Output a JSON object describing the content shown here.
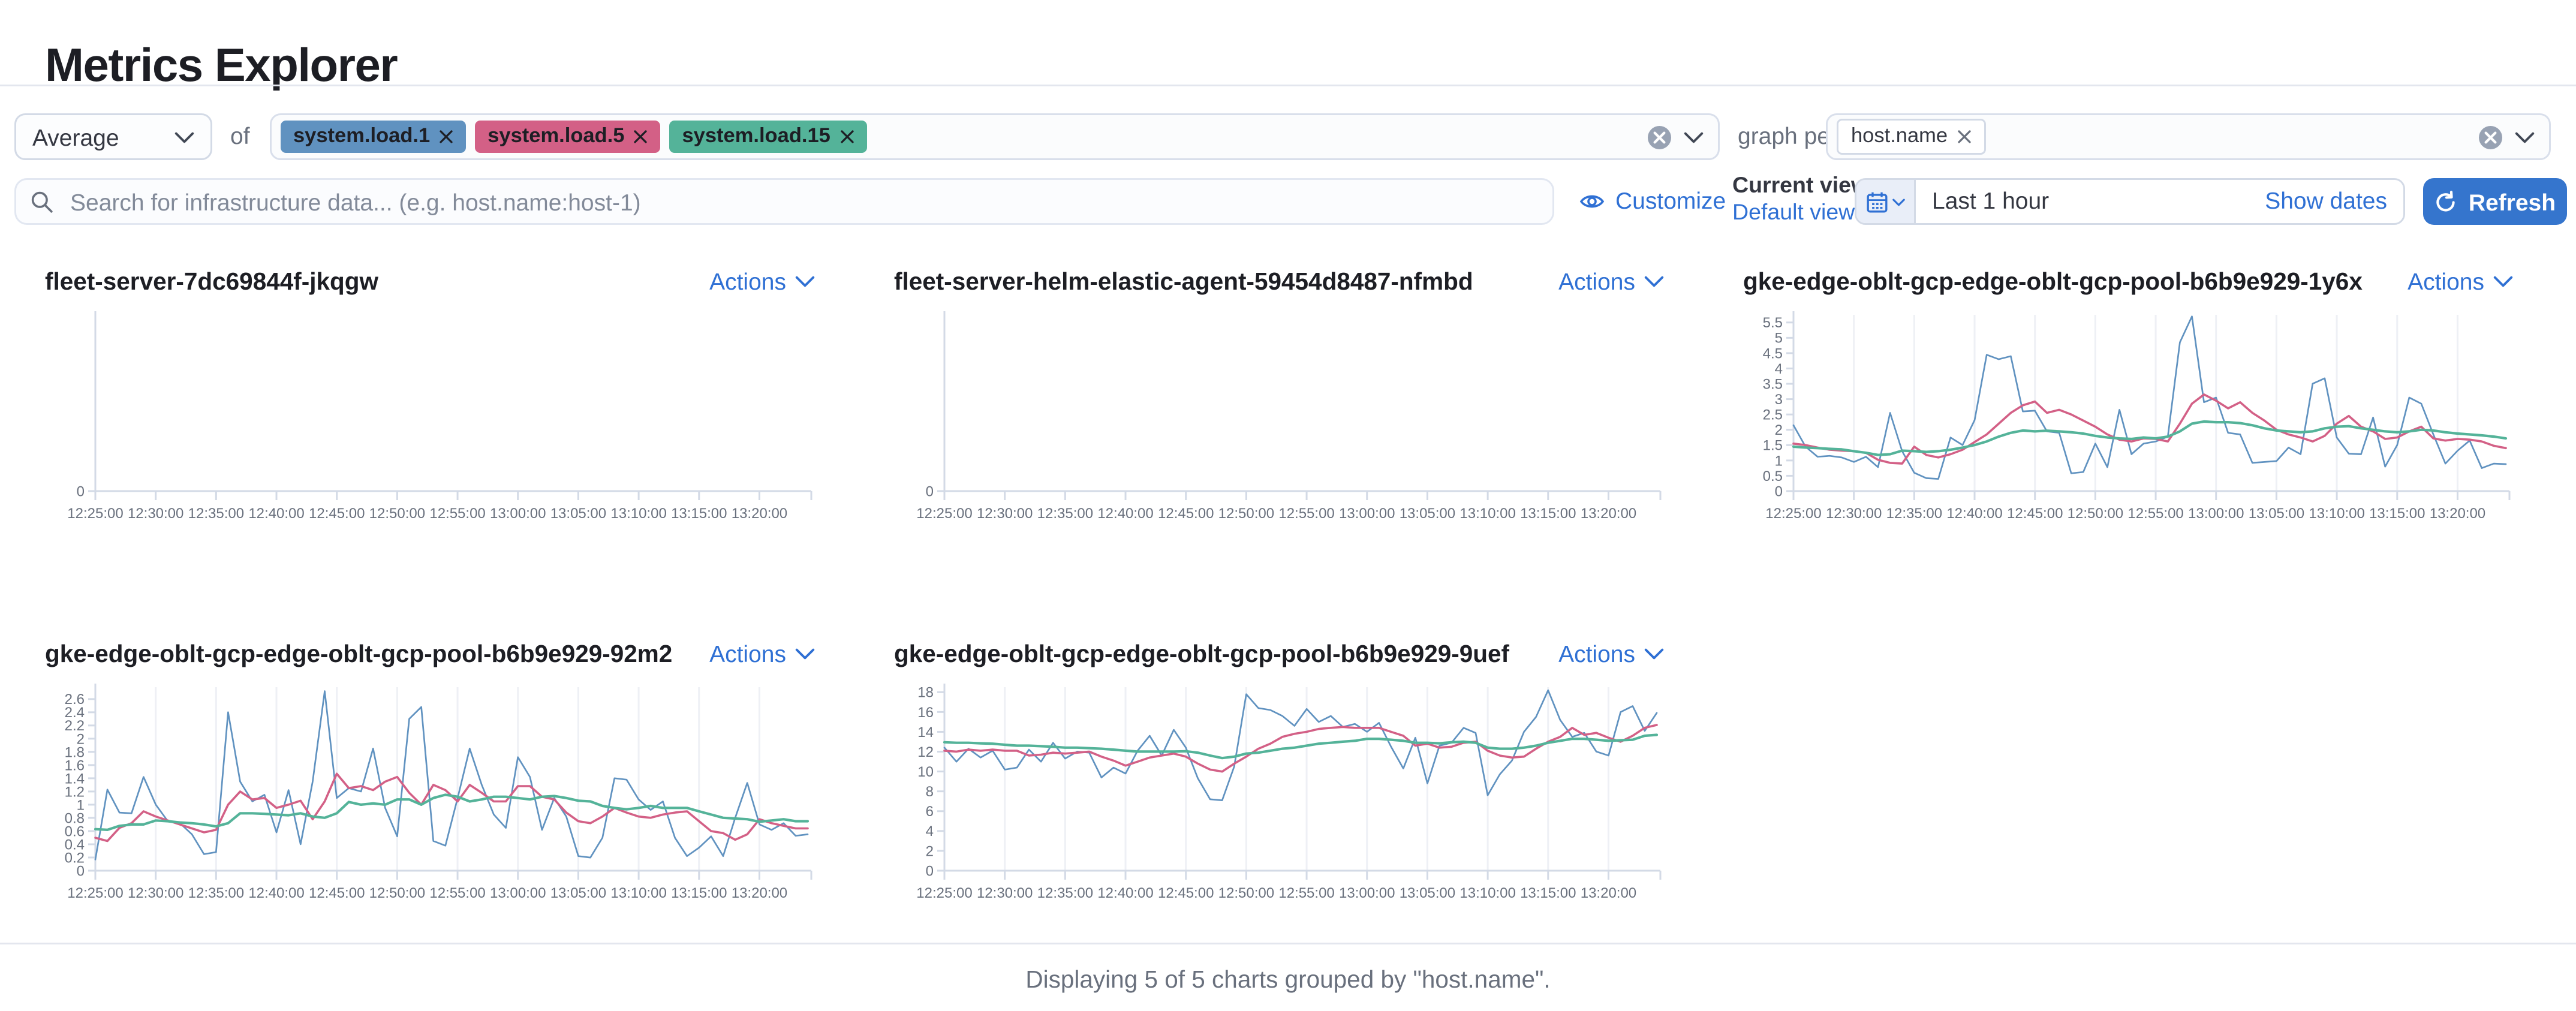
{
  "page": {
    "title": "Metrics Explorer"
  },
  "toolbar": {
    "aggregation": {
      "value": "Average",
      "of_label": "of"
    },
    "metrics_field_tags": [
      {
        "label": "system.load.1",
        "color": "#6092C0"
      },
      {
        "label": "system.load.5",
        "color": "#D36086"
      },
      {
        "label": "system.load.15",
        "color": "#54B399"
      }
    ],
    "graph_per_label": "graph per",
    "group_by_tags": [
      {
        "label": "host.name"
      }
    ],
    "search_placeholder": "Search for infrastructure data... (e.g. host.name:host-1)",
    "customize_label": "Customize",
    "current_view_label": "Current view",
    "default_view_label": "Default view",
    "time_range_value": "Last 1 hour",
    "show_dates_label": "Show dates",
    "refresh_label": "Refresh"
  },
  "charts_common": {
    "actions_label": "Actions"
  },
  "chart_data": [
    {
      "type": "line",
      "title": "fleet-server-7dc69844f-jkqgw",
      "x_ticks": [
        "12:25:00",
        "12:30:00",
        "12:35:00",
        "12:40:00",
        "12:45:00",
        "12:50:00",
        "12:55:00",
        "13:00:00",
        "13:05:00",
        "13:10:00",
        "13:15:00",
        "13:20:00"
      ],
      "y_ticks": [
        "0"
      ],
      "y_max": 1,
      "series": []
    },
    {
      "type": "line",
      "title": "fleet-server-helm-elastic-agent-59454d8487-nfmbd",
      "x_ticks": [
        "12:25:00",
        "12:30:00",
        "12:35:00",
        "12:40:00",
        "12:45:00",
        "12:50:00",
        "12:55:00",
        "13:00:00",
        "13:05:00",
        "13:10:00",
        "13:15:00",
        "13:20:00"
      ],
      "y_ticks": [
        "0"
      ],
      "y_max": 1,
      "series": []
    },
    {
      "type": "line",
      "title": "gke-edge-oblt-gcp-edge-oblt-gcp-pool-b6b9e929-1y6x",
      "x_ticks": [
        "12:25:00",
        "12:30:00",
        "12:35:00",
        "12:40:00",
        "12:45:00",
        "12:50:00",
        "12:55:00",
        "13:00:00",
        "13:05:00",
        "13:10:00",
        "13:15:00",
        "13:20:00"
      ],
      "y_ticks": [
        "0",
        "0.5",
        "1",
        "1.5",
        "2",
        "2.5",
        "3",
        "3.5",
        "4",
        "4.5",
        "5",
        "5.5"
      ],
      "y_max": 5.75,
      "series": [
        {
          "name": "system.load.1",
          "color": "#6092C0",
          "width": 0.9,
          "values": [
            2.15,
            1.45,
            1.12,
            1.15,
            1.1,
            0.95,
            1.12,
            0.78,
            2.55,
            1.3,
            0.6,
            0.42,
            0.4,
            1.75,
            1.5,
            2.32,
            4.45,
            4.3,
            4.4,
            2.6,
            2.62,
            1.95,
            1.9,
            0.58,
            0.62,
            1.55,
            0.78,
            2.65,
            1.2,
            1.55,
            1.62,
            1.78,
            4.85,
            5.7,
            2.9,
            3.05,
            1.9,
            1.85,
            0.92,
            0.95,
            0.98,
            1.42,
            1.2,
            3.5,
            3.68,
            1.75,
            1.22,
            1.2,
            2.4,
            0.8,
            1.5,
            3.05,
            2.85,
            1.85,
            0.9,
            1.32,
            1.65,
            0.75,
            0.9,
            0.88
          ]
        },
        {
          "name": "system.load.5",
          "color": "#D36086",
          "width": 1.2,
          "values": [
            1.55,
            1.5,
            1.42,
            1.35,
            1.32,
            1.3,
            1.25,
            1.02,
            0.92,
            0.9,
            1.45,
            1.18,
            1.1,
            1.2,
            1.35,
            1.6,
            1.85,
            2.2,
            2.55,
            2.8,
            2.92,
            2.55,
            2.65,
            2.5,
            2.3,
            2.1,
            1.85,
            1.68,
            1.62,
            1.72,
            1.7,
            1.62,
            2.2,
            2.85,
            3.15,
            2.95,
            2.7,
            2.9,
            2.55,
            2.3,
            2.0,
            1.85,
            1.75,
            1.62,
            1.8,
            2.2,
            2.45,
            2.1,
            1.95,
            1.7,
            1.75,
            1.95,
            2.1,
            1.72,
            1.65,
            1.7,
            1.68,
            1.62,
            1.48,
            1.4
          ]
        },
        {
          "name": "system.load.15",
          "color": "#54B399",
          "width": 1.4,
          "values": [
            1.45,
            1.42,
            1.4,
            1.38,
            1.36,
            1.3,
            1.25,
            1.18,
            1.2,
            1.32,
            1.3,
            1.28,
            1.3,
            1.35,
            1.42,
            1.5,
            1.62,
            1.78,
            1.9,
            1.98,
            1.95,
            1.97,
            1.95,
            1.92,
            1.88,
            1.8,
            1.75,
            1.72,
            1.7,
            1.75,
            1.72,
            1.78,
            1.95,
            2.2,
            2.27,
            2.25,
            2.25,
            2.22,
            2.15,
            2.05,
            1.98,
            1.95,
            1.92,
            1.95,
            2.05,
            2.1,
            2.12,
            2.05,
            2.0,
            1.95,
            1.92,
            1.95,
            2.0,
            1.98,
            1.92,
            1.88,
            1.85,
            1.82,
            1.78,
            1.72
          ]
        }
      ]
    },
    {
      "type": "line",
      "title": "gke-edge-oblt-gcp-edge-oblt-gcp-pool-b6b9e929-92m2",
      "x_ticks": [
        "12:25:00",
        "12:30:00",
        "12:35:00",
        "12:40:00",
        "12:45:00",
        "12:50:00",
        "12:55:00",
        "13:00:00",
        "13:05:00",
        "13:10:00",
        "13:15:00",
        "13:20:00"
      ],
      "y_ticks": [
        "0",
        "0.2",
        "0.4",
        "0.6",
        "0.8",
        "1",
        "1.2",
        "1.4",
        "1.6",
        "1.8",
        "2",
        "2.2",
        "2.4",
        "2.6"
      ],
      "y_max": 2.78,
      "series": [
        {
          "name": "system.load.1",
          "color": "#6092C0",
          "width": 0.9,
          "values": [
            0.17,
            1.23,
            0.88,
            0.87,
            1.42,
            1.0,
            0.75,
            0.72,
            0.55,
            0.25,
            0.28,
            2.4,
            1.35,
            1.05,
            1.15,
            0.58,
            1.22,
            0.4,
            1.35,
            2.72,
            1.1,
            1.25,
            1.2,
            1.85,
            0.95,
            0.52,
            2.3,
            2.48,
            0.45,
            0.38,
            1.1,
            1.85,
            1.3,
            0.85,
            0.65,
            1.72,
            1.42,
            0.62,
            1.1,
            0.82,
            0.22,
            0.2,
            0.5,
            1.4,
            1.38,
            1.08,
            0.92,
            1.05,
            0.5,
            0.22,
            0.35,
            0.52,
            0.22,
            0.8,
            1.33,
            0.7,
            0.62,
            0.72,
            0.53,
            0.55
          ]
        },
        {
          "name": "system.load.5",
          "color": "#D36086",
          "width": 1.2,
          "values": [
            0.5,
            0.45,
            0.65,
            0.72,
            0.9,
            0.82,
            0.76,
            0.7,
            0.64,
            0.58,
            0.62,
            1.0,
            1.2,
            1.08,
            1.1,
            0.95,
            1.0,
            1.06,
            0.78,
            1.05,
            1.47,
            1.25,
            1.28,
            1.22,
            1.35,
            1.42,
            1.18,
            1.0,
            1.3,
            1.22,
            1.05,
            1.3,
            1.18,
            1.05,
            1.05,
            1.28,
            1.28,
            1.12,
            1.08,
            0.88,
            0.75,
            0.72,
            0.82,
            0.95,
            0.88,
            0.82,
            0.8,
            0.85,
            0.88,
            0.9,
            0.75,
            0.6,
            0.57,
            0.47,
            0.55,
            0.78,
            0.72,
            0.68,
            0.64,
            0.64
          ]
        },
        {
          "name": "system.load.15",
          "color": "#54B399",
          "width": 1.4,
          "values": [
            0.63,
            0.62,
            0.68,
            0.7,
            0.7,
            0.76,
            0.75,
            0.73,
            0.72,
            0.7,
            0.67,
            0.72,
            0.87,
            0.87,
            0.86,
            0.85,
            0.84,
            0.87,
            0.82,
            0.8,
            0.87,
            1.04,
            1.0,
            1.02,
            1.0,
            1.08,
            1.08,
            1.0,
            1.1,
            1.15,
            1.12,
            1.05,
            1.08,
            1.12,
            1.12,
            1.1,
            1.08,
            1.12,
            1.13,
            1.1,
            1.06,
            1.05,
            0.98,
            0.95,
            0.93,
            0.95,
            0.98,
            0.95,
            0.95,
            0.95,
            0.9,
            0.85,
            0.8,
            0.79,
            0.78,
            0.74,
            0.76,
            0.78,
            0.75,
            0.75
          ]
        }
      ]
    },
    {
      "type": "line",
      "title": "gke-edge-oblt-gcp-edge-oblt-gcp-pool-b6b9e929-9uef",
      "x_ticks": [
        "12:25:00",
        "12:30:00",
        "12:35:00",
        "12:40:00",
        "12:45:00",
        "12:50:00",
        "12:55:00",
        "13:00:00",
        "13:05:00",
        "13:10:00",
        "13:15:00",
        "13:20:00"
      ],
      "y_ticks": [
        "0",
        "2",
        "4",
        "6",
        "8",
        "10",
        "12",
        "14",
        "16",
        "18"
      ],
      "y_max": 18.5,
      "series": [
        {
          "name": "system.load.1",
          "color": "#6092C0",
          "width": 0.9,
          "values": [
            12.4,
            11.0,
            12.3,
            11.4,
            12.1,
            10.2,
            10.4,
            12.2,
            11.0,
            12.9,
            11.3,
            12.0,
            11.9,
            9.4,
            10.4,
            9.8,
            12.1,
            13.6,
            11.6,
            14.2,
            12.4,
            9.3,
            7.2,
            7.1,
            10.5,
            17.8,
            16.4,
            16.2,
            15.6,
            14.6,
            16.3,
            15.0,
            15.6,
            14.5,
            14.8,
            14.0,
            14.9,
            12.5,
            10.3,
            13.4,
            8.8,
            12.6,
            12.9,
            14.4,
            13.9,
            7.6,
            9.7,
            11.1,
            14.0,
            15.5,
            18.2,
            15.2,
            13.5,
            13.9,
            12.0,
            11.6,
            16.0,
            16.6,
            14.1,
            15.9
          ]
        },
        {
          "name": "system.load.5",
          "color": "#D36086",
          "width": 1.2,
          "values": [
            12.1,
            12.0,
            12.2,
            12.1,
            12.2,
            12.1,
            12.1,
            11.6,
            11.7,
            11.9,
            11.8,
            11.9,
            12.0,
            11.5,
            11.1,
            10.6,
            11.0,
            11.4,
            11.6,
            11.8,
            11.5,
            10.8,
            10.2,
            10.0,
            10.8,
            11.5,
            12.3,
            12.8,
            13.5,
            13.8,
            14.0,
            14.3,
            14.4,
            14.5,
            14.4,
            14.4,
            14.4,
            14.0,
            13.6,
            12.6,
            12.8,
            12.4,
            12.5,
            12.9,
            13.0,
            12.1,
            11.6,
            11.4,
            11.5,
            12.3,
            13.0,
            13.5,
            14.4,
            13.7,
            13.9,
            13.4,
            13.0,
            13.6,
            14.4,
            14.7
          ]
        },
        {
          "name": "system.load.15",
          "color": "#54B399",
          "width": 1.4,
          "values": [
            12.95,
            12.9,
            12.9,
            12.85,
            12.8,
            12.7,
            12.6,
            12.6,
            12.55,
            12.5,
            12.4,
            12.4,
            12.35,
            12.3,
            12.2,
            12.1,
            12.0,
            12.0,
            12.0,
            12.0,
            12.05,
            11.9,
            11.6,
            11.35,
            11.5,
            11.8,
            11.9,
            12.1,
            12.3,
            12.4,
            12.6,
            12.8,
            12.9,
            13.0,
            13.1,
            13.3,
            13.3,
            13.2,
            13.1,
            12.9,
            12.9,
            12.85,
            12.95,
            13.0,
            12.9,
            12.4,
            12.3,
            12.3,
            12.4,
            12.6,
            12.9,
            13.1,
            13.3,
            13.3,
            13.2,
            13.1,
            13.15,
            13.2,
            13.6,
            13.7
          ]
        }
      ]
    }
  ],
  "footer": {
    "summary": "Displaying 5 of 5 charts grouped by \"host.name\"."
  }
}
